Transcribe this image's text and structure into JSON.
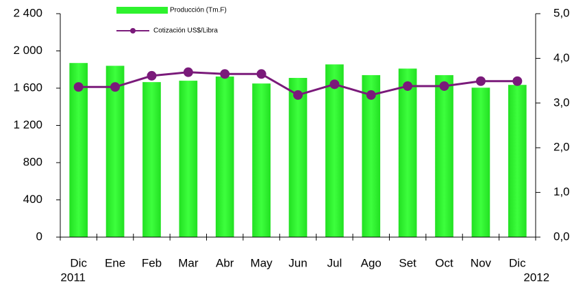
{
  "chart_data": {
    "type": "bar",
    "categories": [
      "Dic",
      "Ene",
      "Feb",
      "Mar",
      "Abr",
      "May",
      "Jun",
      "Jul",
      "Ago",
      "Set",
      "Oct",
      "Nov",
      "Dic"
    ],
    "annotations": [
      "2011",
      "2012"
    ],
    "series": [
      {
        "name": "Producción (Tm.F)",
        "type": "bar",
        "color": "#2ef22e",
        "values": [
          1870,
          1840,
          1665,
          1680,
          1725,
          1650,
          1710,
          1855,
          1740,
          1810,
          1740,
          1605,
          1635
        ]
      },
      {
        "name": "Cotización US$/Libra",
        "type": "line",
        "axis": "y2",
        "color": "#7a1a7a",
        "values": [
          3.36,
          3.36,
          3.61,
          3.69,
          3.65,
          3.65,
          3.18,
          3.42,
          3.18,
          3.38,
          3.38,
          3.49,
          3.49
        ]
      }
    ],
    "ylim": [
      0,
      2400
    ],
    "yticks": [
      0,
      400,
      800,
      {
        "value": 1200,
        "label": "1 200"
      },
      {
        "value": 1600,
        "label": "1 600"
      },
      {
        "value": 2000,
        "label": "2 000"
      },
      {
        "value": 2400,
        "label": "2 400"
      }
    ],
    "y2lim": [
      0,
      5
    ],
    "y2ticks": [
      {
        "value": 0,
        "label": "0,0"
      },
      {
        "value": 1,
        "label": "1,0"
      },
      {
        "value": 2,
        "label": "2,0"
      },
      {
        "value": 3,
        "label": "3,0"
      },
      {
        "value": 4,
        "label": "4,0"
      },
      {
        "value": 5,
        "label": "5,0"
      }
    ],
    "grid": false
  }
}
